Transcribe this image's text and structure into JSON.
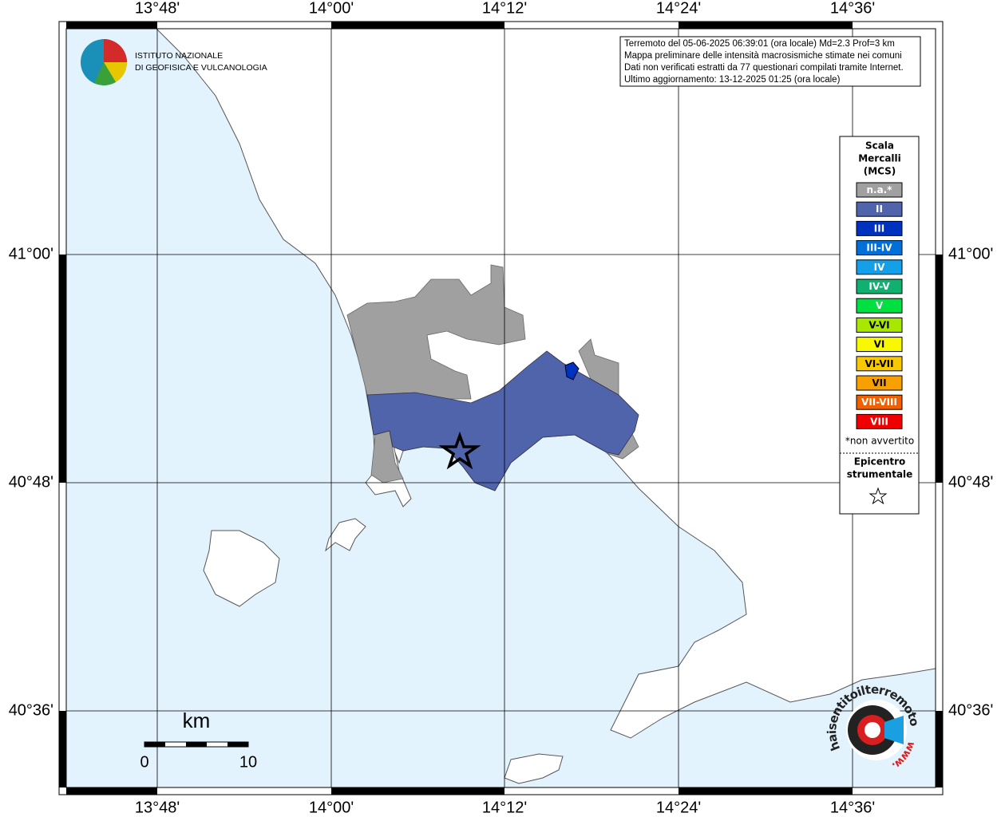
{
  "map": {
    "longitudes": [
      "13°48'",
      "14°00'",
      "14°12'",
      "14°24'",
      "14°36'"
    ],
    "latitudes": [
      "41°00'",
      "40°48'",
      "40°36'"
    ],
    "info": [
      "Terremoto del 05-06-2025 06:39:01 (ora locale) Md=2.3 Prof=3 km",
      "Mappa preliminare delle intensità macrosismiche stimate nei comuni",
      "Dati non verificati estratti da 77 questionari compilati tramite Internet.",
      "Ultimo aggiornamento: 13-12-2025 01:25 (ora locale)"
    ],
    "institute": [
      "ISTITUTO NAZIONALE",
      "DI GEOFISICA E VULCANOLOGIA"
    ],
    "legend": {
      "title": [
        "Scala",
        "Mercalli",
        "(MCS)"
      ],
      "items": [
        {
          "label": "n.a.*",
          "color": "#a0a0a0"
        },
        {
          "label": "II",
          "color": "#5064ac"
        },
        {
          "label": "III",
          "color": "#0032c0"
        },
        {
          "label": "III-IV",
          "color": "#0070d8"
        },
        {
          "label": "IV",
          "color": "#14a0e8"
        },
        {
          "label": "IV-V",
          "color": "#10b070"
        },
        {
          "label": "V",
          "color": "#00e040"
        },
        {
          "label": "V-VI",
          "color": "#a8e800"
        },
        {
          "label": "VI",
          "color": "#f8f800"
        },
        {
          "label": "VI-VII",
          "color": "#f8c800"
        },
        {
          "label": "VII",
          "color": "#f8a000"
        },
        {
          "label": "VII-VIII",
          "color": "#f06000"
        },
        {
          "label": "VIII",
          "color": "#f00000"
        }
      ],
      "note": "*non avvertito",
      "epicenter": [
        "Epicentro",
        "strumentale"
      ]
    },
    "scale": {
      "unit": "km",
      "labels": [
        "0",
        "10"
      ]
    },
    "watermark": {
      "site": "haisentitoilterremoto.it",
      "prefix": "www."
    }
  }
}
